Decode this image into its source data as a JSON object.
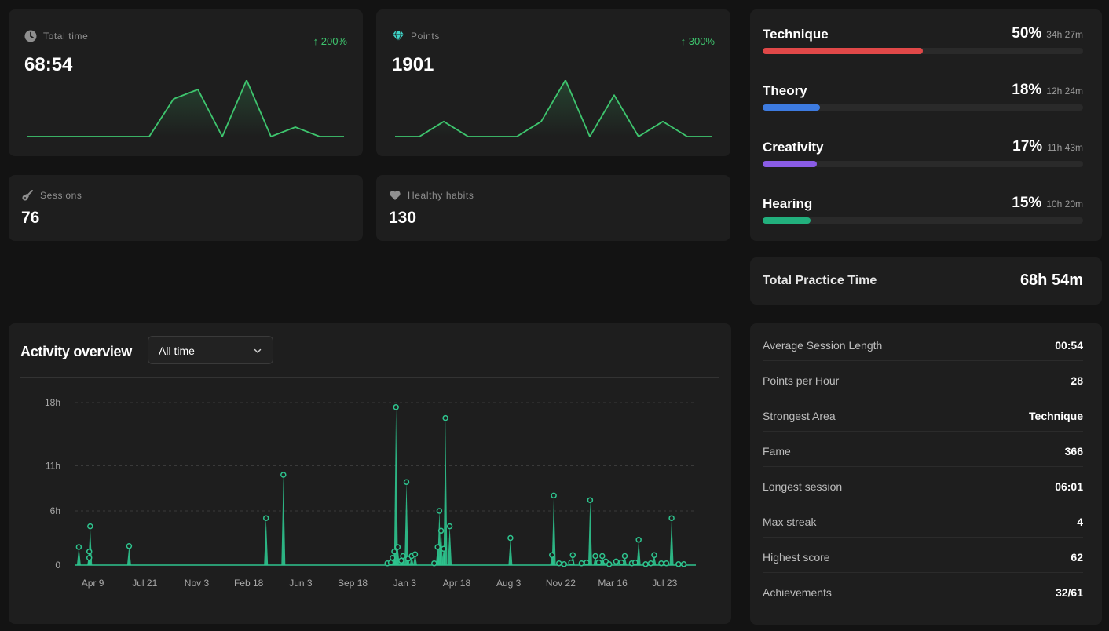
{
  "stats": {
    "total_time": {
      "label": "Total time",
      "value": "68:54",
      "trend": "↑ 200%"
    },
    "points": {
      "label": "Points",
      "value": "1901",
      "trend": "↑ 300%"
    },
    "sessions": {
      "label": "Sessions",
      "value": "76"
    },
    "healthy_habits": {
      "label": "Healthy habits",
      "value": "130"
    }
  },
  "categories": [
    {
      "name": "Technique",
      "percent": "50%",
      "time": "34h 27m",
      "fraction": 0.5,
      "color": "#e04848"
    },
    {
      "name": "Theory",
      "percent": "18%",
      "time": "12h 24m",
      "fraction": 0.18,
      "color": "#3d7be0"
    },
    {
      "name": "Creativity",
      "percent": "17%",
      "time": "11h 43m",
      "fraction": 0.17,
      "color": "#8a5ce6"
    },
    {
      "name": "Hearing",
      "percent": "15%",
      "time": "10h 20m",
      "fraction": 0.15,
      "color": "#22b07d"
    }
  ],
  "total_practice": {
    "label": "Total Practice Time",
    "value": "68h 54m"
  },
  "summary": [
    {
      "label": "Average Session Length",
      "value": "00:54"
    },
    {
      "label": "Points per Hour",
      "value": "28"
    },
    {
      "label": "Strongest Area",
      "value": "Technique"
    },
    {
      "label": "Fame",
      "value": "366"
    },
    {
      "label": "Longest session",
      "value": "06:01"
    },
    {
      "label": "Max streak",
      "value": "4"
    },
    {
      "label": "Highest score",
      "value": "62"
    },
    {
      "label": "Achievements",
      "value": "32/61"
    }
  ],
  "activity": {
    "title": "Activity overview",
    "range_select": "All time"
  },
  "colors": {
    "accent_green": "#3ec56e",
    "activity_green": "#2ec48e",
    "card_bg": "#1e1e1e",
    "page_bg": "#131313"
  },
  "icons": {
    "total_time": "clock-icon",
    "points": "gem-icon",
    "sessions": "guitar-icon",
    "healthy_habits": "heart-icon",
    "select": "chevron-down-icon"
  },
  "chart_data": [
    {
      "type": "line",
      "id": "time_spark",
      "values": [
        0,
        0,
        0,
        0,
        0,
        0,
        2,
        2.5,
        0,
        3,
        0,
        0.5,
        0,
        0
      ]
    },
    {
      "type": "line",
      "id": "points_spark",
      "values": [
        0,
        0,
        0.8,
        0,
        0,
        0,
        0.8,
        3,
        0,
        2.2,
        0,
        0.8,
        0,
        0
      ]
    },
    {
      "type": "area",
      "id": "activity_overview",
      "yticks": [
        "18h",
        "11h",
        "6h",
        "0"
      ],
      "ytick_values": [
        18,
        11,
        6,
        0
      ],
      "xticks": [
        "Apr 9",
        "Jul 21",
        "Nov 3",
        "Feb 18",
        "Jun 3",
        "Sep 18",
        "Jan 3",
        "Apr 18",
        "Aug 3",
        "Nov 22",
        "Mar 16",
        "Jul 23"
      ],
      "xtick_index": [
        1,
        4,
        7,
        10,
        13,
        16,
        19,
        22,
        25,
        28,
        31,
        34
      ],
      "x_range": [
        0,
        35.8
      ],
      "ylim": [
        0,
        18
      ],
      "grid": true,
      "points": [
        [
          0.2,
          2.0
        ],
        [
          0.8,
          0.8
        ],
        [
          0.8,
          1.5
        ],
        [
          0.85,
          4.3
        ],
        [
          3.1,
          2.1
        ],
        [
          11.0,
          5.2
        ],
        [
          12.0,
          10.0
        ],
        [
          18.0,
          0.2
        ],
        [
          18.2,
          0.3
        ],
        [
          18.3,
          0.8
        ],
        [
          18.4,
          1.5
        ],
        [
          18.5,
          17.5
        ],
        [
          18.6,
          2.0
        ],
        [
          18.8,
          0.5
        ],
        [
          18.9,
          1.0
        ],
        [
          19.1,
          9.2
        ],
        [
          19.2,
          0.7
        ],
        [
          19.4,
          1.0
        ],
        [
          19.6,
          1.2
        ],
        [
          20.7,
          0.2
        ],
        [
          20.9,
          2.0
        ],
        [
          21.0,
          6.0
        ],
        [
          21.1,
          3.8
        ],
        [
          21.25,
          1.8
        ],
        [
          21.35,
          16.3
        ],
        [
          21.6,
          4.3
        ],
        [
          25.1,
          3.0
        ],
        [
          27.5,
          1.1
        ],
        [
          27.6,
          7.7
        ],
        [
          27.9,
          0.2
        ],
        [
          28.2,
          0.1
        ],
        [
          28.6,
          0.3
        ],
        [
          28.7,
          1.1
        ],
        [
          29.2,
          0.2
        ],
        [
          29.5,
          0.3
        ],
        [
          29.7,
          7.2
        ],
        [
          30.0,
          1.0
        ],
        [
          30.2,
          0.3
        ],
        [
          30.4,
          1.0
        ],
        [
          30.6,
          0.4
        ],
        [
          30.8,
          0.1
        ],
        [
          31.2,
          0.4
        ],
        [
          31.5,
          0.3
        ],
        [
          31.7,
          1.0
        ],
        [
          32.1,
          0.2
        ],
        [
          32.3,
          0.3
        ],
        [
          32.5,
          2.8
        ],
        [
          32.9,
          0.1
        ],
        [
          33.2,
          0.2
        ],
        [
          33.4,
          1.1
        ],
        [
          33.8,
          0.2
        ],
        [
          34.1,
          0.2
        ],
        [
          34.4,
          5.2
        ],
        [
          34.8,
          0.1
        ],
        [
          35.1,
          0.1
        ]
      ]
    }
  ]
}
